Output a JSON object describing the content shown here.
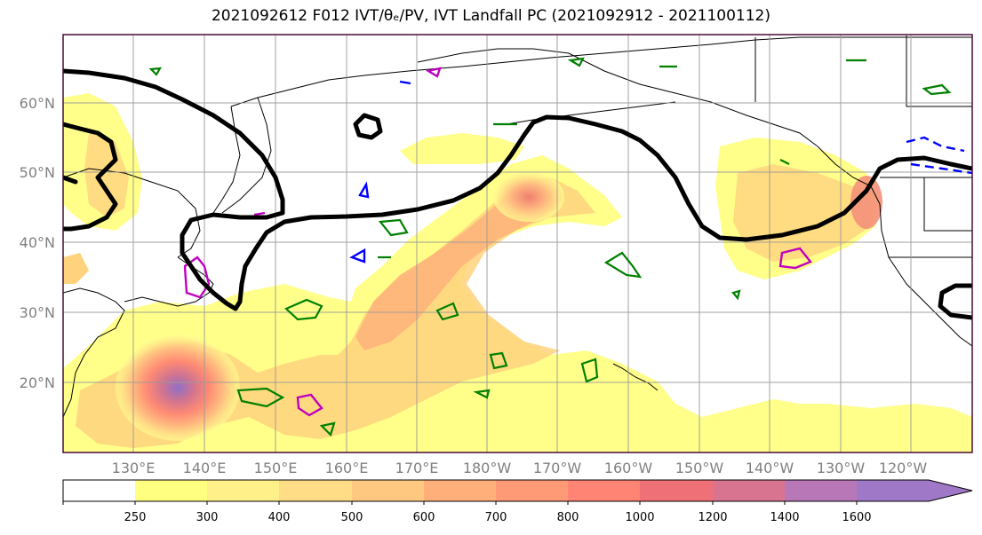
{
  "title": "2021092612 F012 IVT/θₑ/PV, IVT Landfall PC (2021092912 - 2021100112)",
  "lat_labels": [
    "60°N",
    "50°N",
    "40°N",
    "30°N",
    "20°N"
  ],
  "lon_labels": [
    "130°E",
    "140°E",
    "150°E",
    "160°E",
    "170°E",
    "180°W",
    "170°W",
    "160°W",
    "150°W",
    "140°W",
    "130°W",
    "120°W"
  ],
  "colorbar": {
    "ticks": [
      "250",
      "300",
      "400",
      "500",
      "600",
      "700",
      "800",
      "1000",
      "1200",
      "1400",
      "1600"
    ],
    "colors": [
      "#ffffff",
      "#ffff80",
      "#fff08a",
      "#ffdc86",
      "#ffc880",
      "#ffb07a",
      "#ff9a76",
      "#ff8474",
      "#f07078",
      "#d87490",
      "#b878b8",
      "#a078c8"
    ]
  },
  "colors": {
    "height_contour": "#000000",
    "theta_e": "#008000",
    "pv_high": "#c000c0",
    "pv_low": "#0000ff"
  }
}
